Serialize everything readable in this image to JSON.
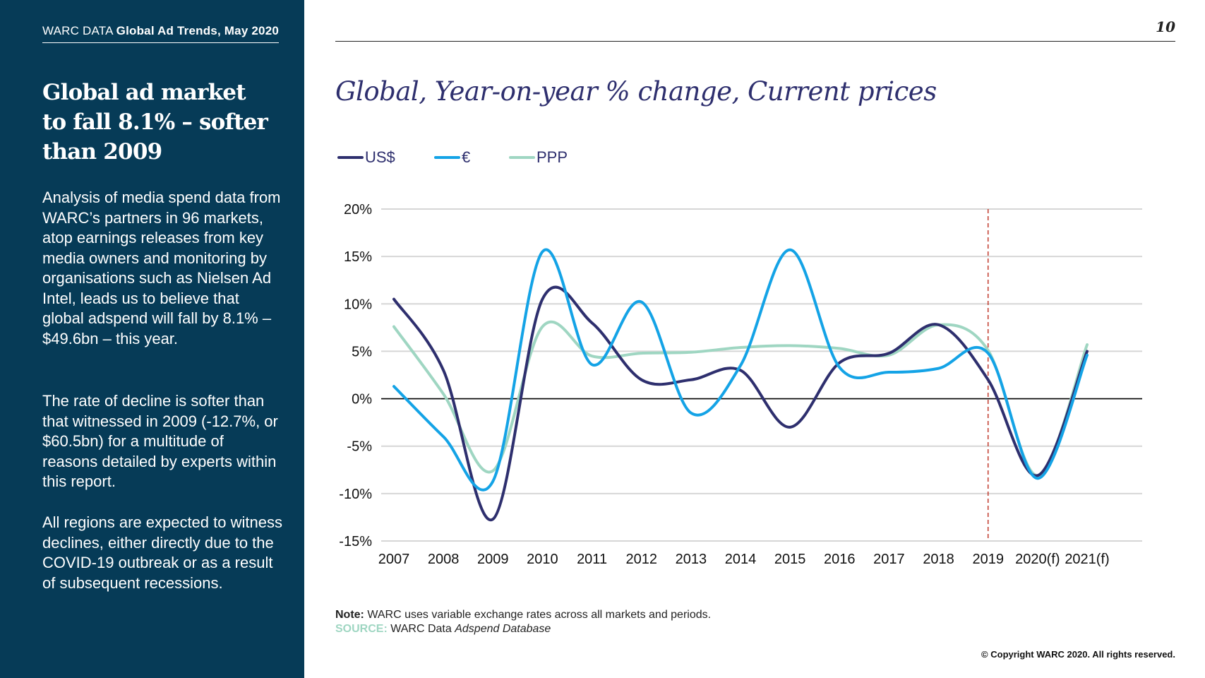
{
  "header": {
    "prefix": "WARC DATA",
    "title": "Global Ad Trends, May 2020",
    "page_number": "10"
  },
  "sidebar": {
    "headline": "Global ad market to fall 8.1% – softer than 2009",
    "paragraphs": [
      "Analysis of media spend data from WARC’s partners in 96 markets, atop earnings releases from key media owners and monitoring by organisations such as Nielsen Ad Intel, leads us to believe that global adspend will fall by 8.1% – $49.6bn – this year.",
      "The rate of decline is softer than that witnessed in 2009 (-12.7%, or $60.5bn) for a multitude of reasons detailed by experts within this report.",
      "All regions are expected to witness declines, either directly due to the COVID-19 outbreak or as a result of subsequent recessions."
    ]
  },
  "colors": {
    "sidebar_bg": "#063b57",
    "usd": "#2e2f6e",
    "eur": "#14a3e6",
    "ppp": "#9fd6c2",
    "forecast_marker": "#c0392b"
  },
  "chart_data": {
    "type": "line",
    "title": "Global, Year-on-year % change, Current prices",
    "categories": [
      "2007",
      "2008",
      "2009",
      "2010",
      "2011",
      "2012",
      "2013",
      "2014",
      "2015",
      "2016",
      "2017",
      "2018",
      "2019",
      "2020(f)",
      "2021(f)"
    ],
    "series": [
      {
        "name": "US$",
        "values": [
          10.5,
          3.0,
          -12.7,
          10.5,
          8.0,
          2.0,
          2.0,
          3.0,
          -3.0,
          3.8,
          4.8,
          7.8,
          2.0,
          -8.1,
          5.0
        ]
      },
      {
        "name": "€",
        "values": [
          1.3,
          -4.0,
          -8.7,
          15.5,
          3.6,
          10.2,
          -1.5,
          3.5,
          15.7,
          3.3,
          2.8,
          3.2,
          4.8,
          -8.4,
          4.6
        ]
      },
      {
        "name": "PPP",
        "values": [
          7.6,
          0.5,
          -7.6,
          7.6,
          4.5,
          4.8,
          4.9,
          5.4,
          5.6,
          5.3,
          4.6,
          7.8,
          5.1,
          -8.1,
          5.7
        ]
      }
    ],
    "y_ticks": [
      "20%",
      "15%",
      "10%",
      "5%",
      "0%",
      "-5%",
      "-10%",
      "-15%"
    ],
    "ylim": [
      -15,
      20
    ],
    "forecast_divider_at": "2019",
    "grid": true,
    "legend": "top-left",
    "note_label": "Note:",
    "note": "WARC uses variable exchange rates across all markets and periods.",
    "source_label": "SOURCE:",
    "source_text": "WARC Data",
    "source_italic": "Adspend Database"
  },
  "footer": {
    "copyright": "© Copyright WARC 2020. All rights reserved."
  }
}
